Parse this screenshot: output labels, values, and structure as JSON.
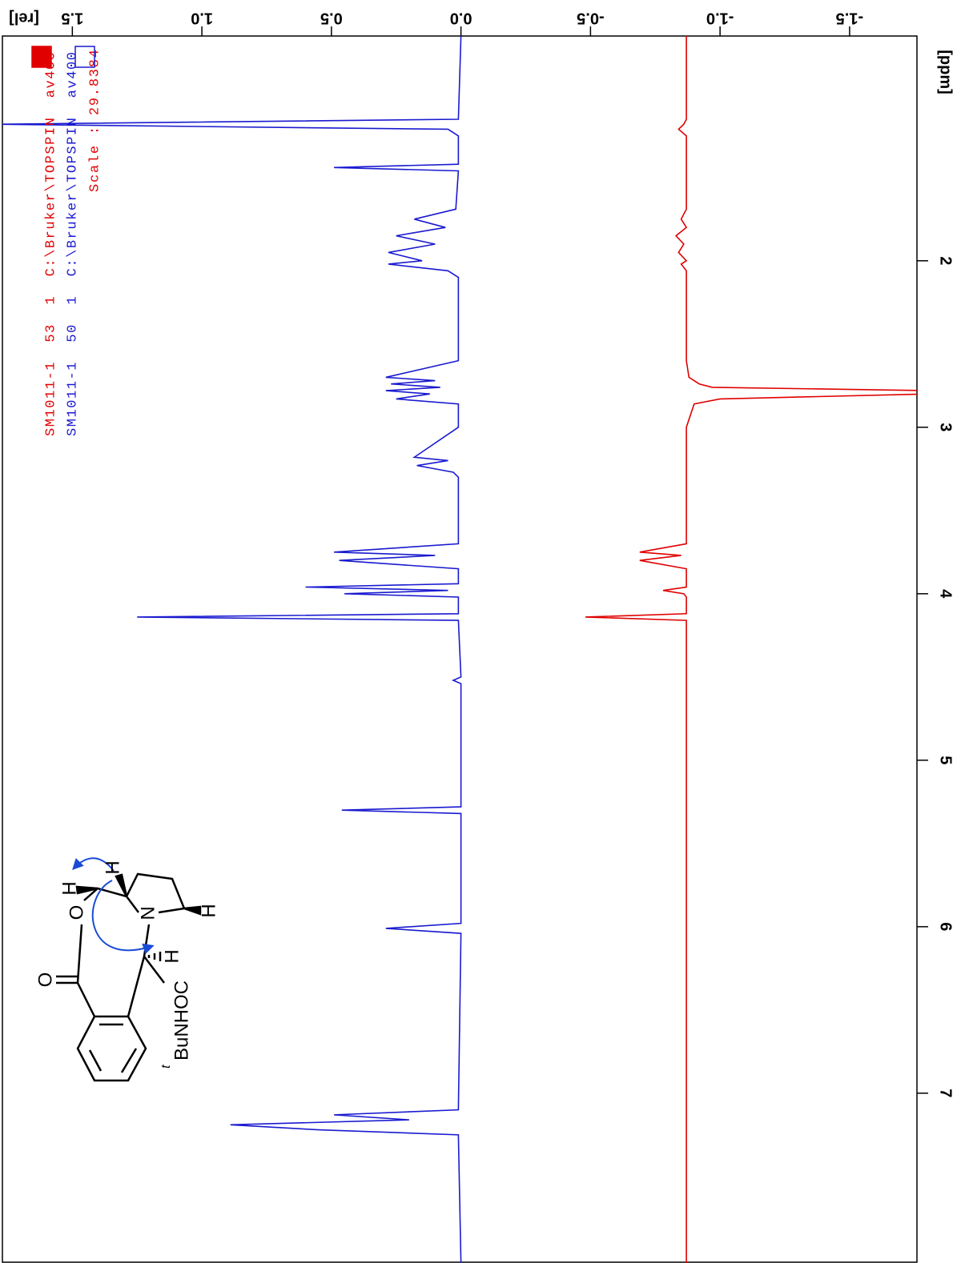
{
  "chart_data": {
    "type": "line",
    "x_label": "[ppm]",
    "y_label": "[rel]",
    "xlim": [
      0.65,
      8.02
    ],
    "xticks": [
      2,
      3,
      4,
      5,
      6,
      7
    ],
    "ylim": [
      1.77,
      -1.76
    ],
    "yticks": [
      1.5,
      {
        "value": 1,
        "label": "1.0"
      },
      0.5,
      {
        "value": 0,
        "label": "0.0"
      },
      -0.5,
      {
        "value": -1,
        "label": "-1.0"
      },
      -1.5
    ],
    "x": [
      0.65,
      1.15,
      1.18,
      1.21,
      1.25,
      1.42,
      1.44,
      1.46,
      1.69,
      1.75,
      1.8,
      1.85,
      1.9,
      1.95,
      2.0,
      2.02,
      2.06,
      2.1,
      2.6,
      2.7,
      2.72,
      2.74,
      2.76,
      2.78,
      2.8,
      2.83,
      2.86,
      3.0,
      3.18,
      3.2,
      3.23,
      3.27,
      3.3,
      3.7,
      3.75,
      3.77,
      3.8,
      3.85,
      3.94,
      3.96,
      3.98,
      4.0,
      4.02,
      4.12,
      4.14,
      4.16,
      4.5,
      4.52,
      4.54,
      5.28,
      5.3,
      5.32,
      5.98,
      6.01,
      6.04,
      7.1,
      7.13,
      7.16,
      7.19,
      7.22,
      7.25,
      8.02
    ],
    "series": [
      {
        "name": "SM1011-1  53  1  C:\\Bruker\\TOPSPIN  av400",
        "color": "#e00000",
        "legend_fill": true,
        "values": [
          -0.87,
          -0.87,
          -0.86,
          -0.84,
          -0.87,
          -0.87,
          -0.87,
          -0.87,
          -0.87,
          -0.85,
          -0.87,
          -0.83,
          -0.86,
          -0.84,
          -0.87,
          -0.85,
          -0.87,
          -0.87,
          -0.87,
          -0.88,
          -0.9,
          -0.92,
          -0.97,
          -1.8,
          -1.8,
          -1.0,
          -0.9,
          -0.87,
          -0.87,
          -0.87,
          -0.87,
          -0.87,
          -0.87,
          -0.87,
          -0.69,
          -0.85,
          -0.69,
          -0.87,
          -0.87,
          -0.87,
          -0.78,
          -0.86,
          -0.87,
          -0.87,
          -0.48,
          -0.87,
          -0.87,
          -0.87,
          -0.87,
          -0.87,
          -0.87,
          -0.87,
          -0.87,
          -0.87,
          -0.87,
          -0.87,
          -0.87,
          -0.87,
          -0.87,
          -0.87,
          -0.87,
          -0.87
        ]
      },
      {
        "name": "SM1011-1  50  1  C:\\Bruker\\TOPSPIN  av400",
        "color": "#1a1ad0",
        "legend_fill": false,
        "values": [
          0,
          0.01,
          1.8,
          0.05,
          0.01,
          0.01,
          0.49,
          0.01,
          0.02,
          0.18,
          0.06,
          0.25,
          0.1,
          0.28,
          0.15,
          0.28,
          0.05,
          0.01,
          0.01,
          0.29,
          0.1,
          0.27,
          0.08,
          0.29,
          0.12,
          0.25,
          0.01,
          0.01,
          0.18,
          0.05,
          0.17,
          0.03,
          0.01,
          0.01,
          0.49,
          0.1,
          0.47,
          0.01,
          0.01,
          0.6,
          0.05,
          0.45,
          0.01,
          0.01,
          1.25,
          0.01,
          0,
          0.03,
          0,
          0,
          0.46,
          0,
          0,
          0.29,
          0,
          0.01,
          0.49,
          0.2,
          0.89,
          0.55,
          0.01,
          0
        ]
      }
    ],
    "annotations": [
      "Scale : 29.8384"
    ],
    "structure": {
      "carbonyl_o": "O",
      "ring_o": "O",
      "n": "N",
      "h1": "H",
      "h2": "H",
      "h3": "H",
      "h4": "H",
      "prefix": "t",
      "substituent": "BuNHOC"
    }
  }
}
